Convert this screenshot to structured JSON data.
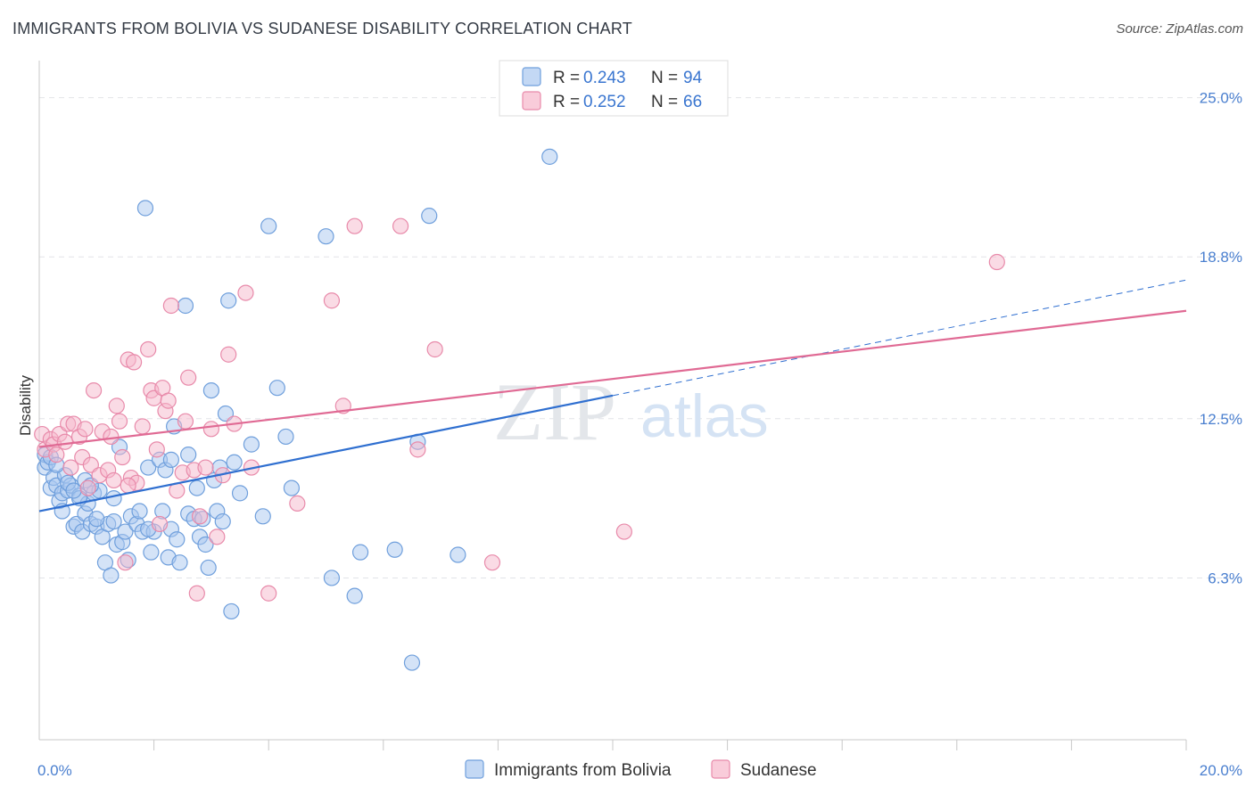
{
  "header": {
    "title": "IMMIGRANTS FROM BOLIVIA VS SUDANESE DISABILITY CORRELATION CHART",
    "source": "Source: ZipAtlas.com"
  },
  "watermark": {
    "zip": "ZIP",
    "atlas": "atlas"
  },
  "colors": {
    "blue_fill": "#aac8f0",
    "blue_stroke": "#6f9fdc",
    "blue_line": "#2f6fd0",
    "pink_fill": "#f6b7cb",
    "pink_stroke": "#e88aaa",
    "pink_line": "#e06a94",
    "tick_label": "#4a7fcf"
  },
  "legend": {
    "r_label": "R =",
    "n_label": "N =",
    "series": [
      {
        "r": "0.243",
        "n": "94"
      },
      {
        "r": "0.252",
        "n": "66"
      }
    ]
  },
  "chart_data": {
    "type": "scatter",
    "title": "IMMIGRANTS FROM BOLIVIA VS SUDANESE DISABILITY CORRELATION CHART",
    "xlabel": "",
    "ylabel": "Disability",
    "xlim": [
      0,
      20
    ],
    "ylim": [
      0,
      26.2
    ],
    "x_tick_labels": [
      {
        "value": 0,
        "label": "0.0%"
      },
      {
        "value": 20,
        "label": "20.0%"
      }
    ],
    "y_tick_labels": [
      {
        "value": 6.3,
        "label": "6.3%"
      },
      {
        "value": 12.5,
        "label": "12.5%"
      },
      {
        "value": 18.8,
        "label": "18.8%"
      },
      {
        "value": 25.0,
        "label": "25.0%"
      }
    ],
    "x_minor_ticks": [
      2,
      4,
      6,
      8,
      10,
      12,
      14,
      16,
      18,
      20
    ],
    "grid": "horizontal-dashed",
    "legend_position": "top-center",
    "series": [
      {
        "name": "Immigrants from Bolivia",
        "trend": {
          "x0": 0,
          "y0": 8.9,
          "x1": 10,
          "y1": 13.4,
          "dashed_to_x": 20,
          "dashed_to_y": 17.9
        },
        "points": [
          [
            0.1,
            10.6
          ],
          [
            0.1,
            11.1
          ],
          [
            0.15,
            10.8
          ],
          [
            0.2,
            9.8
          ],
          [
            0.25,
            10.2
          ],
          [
            0.3,
            9.9
          ],
          [
            0.35,
            9.3
          ],
          [
            0.4,
            9.6
          ],
          [
            0.45,
            10.3
          ],
          [
            0.5,
            9.7
          ],
          [
            0.55,
            9.9
          ],
          [
            0.6,
            8.3
          ],
          [
            0.65,
            8.4
          ],
          [
            0.7,
            9.5
          ],
          [
            0.75,
            8.1
          ],
          [
            0.8,
            8.8
          ],
          [
            0.85,
            9.2
          ],
          [
            0.9,
            8.4
          ],
          [
            0.95,
            9.6
          ],
          [
            1.0,
            8.3
          ],
          [
            1.05,
            9.7
          ],
          [
            1.1,
            7.9
          ],
          [
            1.15,
            6.9
          ],
          [
            1.2,
            8.4
          ],
          [
            1.25,
            6.4
          ],
          [
            1.3,
            9.4
          ],
          [
            1.35,
            7.6
          ],
          [
            1.4,
            11.4
          ],
          [
            1.45,
            7.7
          ],
          [
            1.5,
            8.1
          ],
          [
            1.55,
            7.0
          ],
          [
            1.6,
            8.7
          ],
          [
            1.7,
            8.4
          ],
          [
            1.75,
            8.9
          ],
          [
            1.8,
            8.1
          ],
          [
            1.85,
            20.7
          ],
          [
            1.9,
            10.6
          ],
          [
            1.95,
            7.3
          ],
          [
            2.0,
            8.1
          ],
          [
            2.1,
            10.9
          ],
          [
            2.15,
            8.9
          ],
          [
            2.2,
            10.5
          ],
          [
            2.25,
            7.1
          ],
          [
            2.3,
            8.2
          ],
          [
            2.35,
            12.2
          ],
          [
            2.4,
            7.8
          ],
          [
            2.45,
            6.9
          ],
          [
            2.55,
            16.9
          ],
          [
            2.6,
            8.8
          ],
          [
            2.7,
            8.6
          ],
          [
            2.75,
            9.8
          ],
          [
            2.8,
            7.9
          ],
          [
            2.85,
            8.6
          ],
          [
            2.9,
            7.6
          ],
          [
            2.95,
            6.7
          ],
          [
            3.0,
            13.6
          ],
          [
            3.05,
            10.1
          ],
          [
            3.1,
            8.9
          ],
          [
            3.15,
            10.6
          ],
          [
            3.2,
            8.5
          ],
          [
            3.25,
            12.7
          ],
          [
            3.3,
            17.1
          ],
          [
            3.35,
            5.0
          ],
          [
            3.4,
            10.8
          ],
          [
            3.5,
            9.6
          ],
          [
            3.7,
            11.5
          ],
          [
            3.9,
            8.7
          ],
          [
            4.0,
            20.0
          ],
          [
            4.15,
            13.7
          ],
          [
            4.3,
            11.8
          ],
          [
            4.4,
            9.8
          ],
          [
            5.0,
            19.6
          ],
          [
            5.1,
            6.3
          ],
          [
            5.5,
            5.6
          ],
          [
            5.6,
            7.3
          ],
          [
            6.2,
            7.4
          ],
          [
            6.5,
            3.0
          ],
          [
            6.6,
            11.6
          ],
          [
            6.8,
            20.4
          ],
          [
            7.3,
            7.2
          ],
          [
            8.9,
            22.7
          ],
          [
            0.2,
            11.0
          ],
          [
            0.3,
            10.7
          ],
          [
            0.5,
            10.0
          ],
          [
            0.7,
            9.4
          ],
          [
            1.0,
            8.6
          ],
          [
            1.3,
            8.5
          ],
          [
            2.3,
            10.9
          ],
          [
            2.6,
            11.1
          ],
          [
            1.9,
            8.2
          ],
          [
            0.4,
            8.9
          ],
          [
            0.6,
            9.7
          ],
          [
            0.8,
            10.1
          ],
          [
            0.9,
            9.9
          ]
        ]
      },
      {
        "name": "Sudanese",
        "trend": {
          "x0": 0,
          "y0": 11.4,
          "x1": 20,
          "y1": 16.7
        },
        "points": [
          [
            0.05,
            11.9
          ],
          [
            0.1,
            11.3
          ],
          [
            0.2,
            11.7
          ],
          [
            0.25,
            11.5
          ],
          [
            0.3,
            11.1
          ],
          [
            0.35,
            11.9
          ],
          [
            0.45,
            11.6
          ],
          [
            0.5,
            12.3
          ],
          [
            0.55,
            10.6
          ],
          [
            0.6,
            12.3
          ],
          [
            0.7,
            11.8
          ],
          [
            0.75,
            11.0
          ],
          [
            0.8,
            12.1
          ],
          [
            0.85,
            9.8
          ],
          [
            0.9,
            10.7
          ],
          [
            0.95,
            13.6
          ],
          [
            1.05,
            10.3
          ],
          [
            1.1,
            12.0
          ],
          [
            1.2,
            10.5
          ],
          [
            1.25,
            11.8
          ],
          [
            1.3,
            10.1
          ],
          [
            1.35,
            13.0
          ],
          [
            1.4,
            12.4
          ],
          [
            1.45,
            11.0
          ],
          [
            1.5,
            6.9
          ],
          [
            1.55,
            14.8
          ],
          [
            1.6,
            10.2
          ],
          [
            1.65,
            14.7
          ],
          [
            1.7,
            10.0
          ],
          [
            1.8,
            12.2
          ],
          [
            1.9,
            15.2
          ],
          [
            1.95,
            13.6
          ],
          [
            2.0,
            13.3
          ],
          [
            2.05,
            11.3
          ],
          [
            2.1,
            8.4
          ],
          [
            2.15,
            13.7
          ],
          [
            2.2,
            12.8
          ],
          [
            2.25,
            13.2
          ],
          [
            2.3,
            16.9
          ],
          [
            2.4,
            9.7
          ],
          [
            2.5,
            10.4
          ],
          [
            2.55,
            12.4
          ],
          [
            2.6,
            14.1
          ],
          [
            2.7,
            10.5
          ],
          [
            2.75,
            5.7
          ],
          [
            2.8,
            8.7
          ],
          [
            2.9,
            10.6
          ],
          [
            3.0,
            12.1
          ],
          [
            3.1,
            7.9
          ],
          [
            3.2,
            10.3
          ],
          [
            3.3,
            15.0
          ],
          [
            3.4,
            12.3
          ],
          [
            3.6,
            17.4
          ],
          [
            3.7,
            10.6
          ],
          [
            4.0,
            5.7
          ],
          [
            4.5,
            9.2
          ],
          [
            5.1,
            17.1
          ],
          [
            5.3,
            13.0
          ],
          [
            5.5,
            20.0
          ],
          [
            6.3,
            20.0
          ],
          [
            6.6,
            11.3
          ],
          [
            6.9,
            15.2
          ],
          [
            7.9,
            6.9
          ],
          [
            10.2,
            8.1
          ],
          [
            16.7,
            18.6
          ],
          [
            1.55,
            9.9
          ]
        ]
      }
    ]
  }
}
